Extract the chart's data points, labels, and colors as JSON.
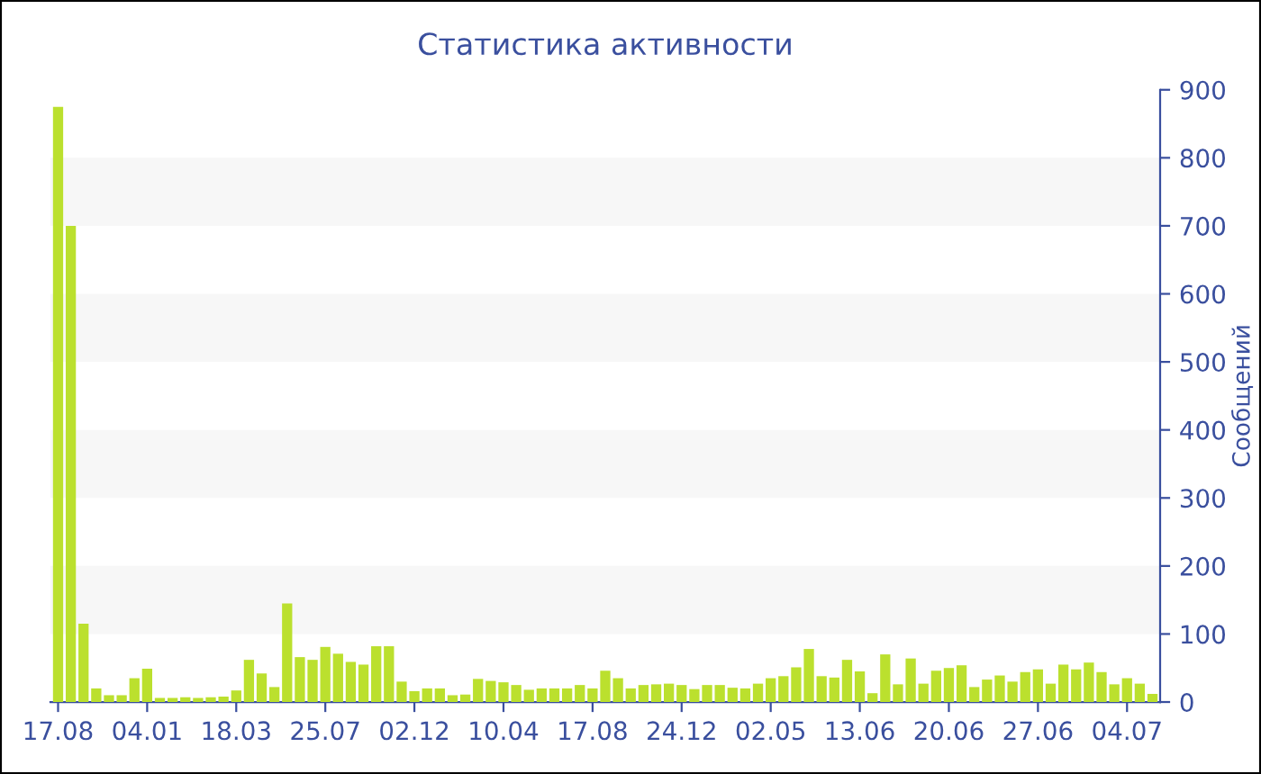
{
  "chart_data": {
    "type": "bar",
    "title": "Статистика активности",
    "ylabel": "Сообщений",
    "categories": [
      "17.08",
      null,
      null,
      null,
      null,
      null,
      null,
      "04.01",
      null,
      null,
      null,
      null,
      null,
      null,
      "18.03",
      null,
      null,
      null,
      null,
      null,
      null,
      "25.07",
      null,
      null,
      null,
      null,
      null,
      null,
      "02.12",
      null,
      null,
      null,
      null,
      null,
      null,
      "10.04",
      null,
      null,
      null,
      null,
      null,
      null,
      "17.08",
      null,
      null,
      null,
      null,
      null,
      null,
      "24.12",
      null,
      null,
      null,
      null,
      null,
      null,
      "02.05",
      null,
      null,
      null,
      null,
      null,
      null,
      "13.06",
      null,
      null,
      null,
      null,
      null,
      null,
      "20.06",
      null,
      null,
      null,
      null,
      null,
      null,
      "27.06",
      null,
      null,
      null,
      null,
      null,
      null,
      "04.07",
      null,
      null
    ],
    "values": [
      875,
      700,
      115,
      20,
      10,
      10,
      35,
      49,
      6,
      6,
      7,
      6,
      7,
      8,
      17,
      62,
      42,
      22,
      145,
      66,
      62,
      81,
      71,
      59,
      55,
      82,
      82,
      30,
      16,
      20,
      20,
      10,
      11,
      34,
      31,
      29,
      25,
      18,
      20,
      20,
      20,
      25,
      20,
      46,
      35,
      20,
      25,
      26,
      27,
      25,
      19,
      25,
      25,
      21,
      20,
      27,
      35,
      38,
      51,
      78,
      38,
      36,
      62,
      45,
      13,
      70,
      26,
      64,
      27,
      46,
      50,
      54,
      22,
      33,
      39,
      30,
      44,
      48,
      27,
      55,
      48,
      58,
      44,
      26,
      35,
      27,
      12
    ],
    "color": "#bbe02e",
    "ylim": [
      0,
      900
    ],
    "yticks": [
      0,
      100,
      200,
      300,
      400,
      500,
      600,
      700,
      800,
      900
    ],
    "bands": [
      {
        "axis": "y",
        "from": 100,
        "to": 200,
        "color": "#f7f7f7"
      },
      {
        "axis": "y",
        "from": 300,
        "to": 400,
        "color": "#f7f7f7"
      },
      {
        "axis": "y",
        "from": 500,
        "to": 600,
        "color": "#f7f7f7"
      },
      {
        "axis": "y",
        "from": 700,
        "to": 800,
        "color": "#f7f7f7"
      }
    ]
  }
}
